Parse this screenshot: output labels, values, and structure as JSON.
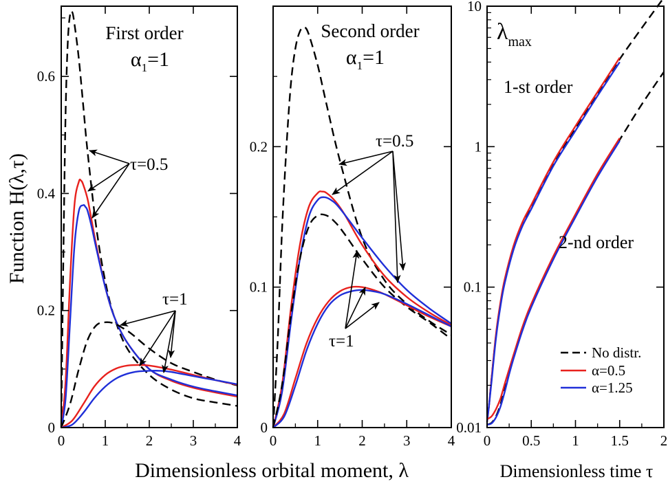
{
  "ylabel": "Function H(λ,τ)",
  "xlabel_left": "Dimensionless orbital moment, λ",
  "xlabel_right": "Dimensionless time τ",
  "chart_data": [
    {
      "type": "line",
      "title": "First order",
      "subtitle": "α₁=1",
      "xlabel": "Dimensionless orbital moment, λ",
      "ylabel": "Function H(λ,τ)",
      "xlim": [
        0,
        4
      ],
      "ylim": [
        0,
        0.72
      ],
      "xticks": [
        0,
        1,
        2,
        3,
        4
      ],
      "yticks": [
        0,
        0.2,
        0.4,
        0.6
      ],
      "annotations": [
        "τ=0.5",
        "τ=1"
      ],
      "series": [
        {
          "tau": 0.5,
          "style": "dashed",
          "color": "#000000",
          "x": [
            0,
            0.05,
            0.1,
            0.15,
            0.2,
            0.25,
            0.3,
            0.4,
            0.5,
            0.6,
            0.8,
            1.0,
            1.2,
            1.5,
            2.0,
            2.5,
            3.0,
            3.5,
            4.0
          ],
          "y": [
            0,
            0.3,
            0.54,
            0.66,
            0.705,
            0.71,
            0.69,
            0.63,
            0.55,
            0.47,
            0.34,
            0.25,
            0.19,
            0.135,
            0.09,
            0.065,
            0.05,
            0.043,
            0.037
          ]
        },
        {
          "tau": 0.5,
          "style": "solid",
          "color": "#e8211d",
          "x": [
            0,
            0.1,
            0.2,
            0.3,
            0.4,
            0.45,
            0.5,
            0.6,
            0.7,
            0.8,
            1.0,
            1.2,
            1.5,
            2.0,
            2.5,
            3.0,
            3.5,
            4.0
          ],
          "y": [
            0,
            0.08,
            0.25,
            0.38,
            0.42,
            0.422,
            0.415,
            0.39,
            0.35,
            0.31,
            0.24,
            0.19,
            0.145,
            0.1,
            0.08,
            0.068,
            0.06,
            0.053
          ]
        },
        {
          "tau": 0.5,
          "style": "solid",
          "color": "#1f2fd8",
          "x": [
            0,
            0.1,
            0.2,
            0.3,
            0.4,
            0.5,
            0.55,
            0.6,
            0.7,
            0.8,
            1.0,
            1.2,
            1.5,
            2.0,
            2.5,
            3.0,
            3.5,
            4.0
          ],
          "y": [
            0,
            0.05,
            0.18,
            0.31,
            0.37,
            0.38,
            0.377,
            0.37,
            0.34,
            0.305,
            0.24,
            0.19,
            0.145,
            0.1,
            0.082,
            0.07,
            0.062,
            0.055
          ]
        },
        {
          "tau": 1,
          "style": "dashed",
          "color": "#000000",
          "x": [
            0,
            0.2,
            0.4,
            0.6,
            0.8,
            1.0,
            1.2,
            1.4,
            1.6,
            2.0,
            2.5,
            3.0,
            3.5,
            4.0
          ],
          "y": [
            0,
            0.04,
            0.1,
            0.15,
            0.175,
            0.18,
            0.178,
            0.17,
            0.16,
            0.135,
            0.11,
            0.095,
            0.082,
            0.072
          ]
        },
        {
          "tau": 1,
          "style": "solid",
          "color": "#e8211d",
          "x": [
            0,
            0.25,
            0.5,
            0.75,
            1.0,
            1.25,
            1.5,
            1.75,
            2.0,
            2.5,
            3.0,
            3.5,
            4.0
          ],
          "y": [
            0,
            0.012,
            0.04,
            0.07,
            0.09,
            0.101,
            0.106,
            0.107,
            0.106,
            0.099,
            0.09,
            0.081,
            0.073
          ]
        },
        {
          "tau": 1,
          "style": "solid",
          "color": "#1f2fd8",
          "x": [
            0,
            0.25,
            0.5,
            0.75,
            1.0,
            1.25,
            1.5,
            1.75,
            2.0,
            2.25,
            2.5,
            3.0,
            3.5,
            4.0
          ],
          "y": [
            0,
            0.005,
            0.025,
            0.05,
            0.07,
            0.084,
            0.092,
            0.096,
            0.097,
            0.097,
            0.095,
            0.088,
            0.081,
            0.074
          ]
        }
      ]
    },
    {
      "type": "line",
      "title": "Second order",
      "subtitle": "α₁=1",
      "xlabel": "Dimensionless orbital moment, λ",
      "xlim": [
        0,
        4
      ],
      "ylim": [
        0,
        0.3
      ],
      "xticks": [
        0,
        1,
        2,
        3,
        4
      ],
      "yticks": [
        0,
        0.1,
        0.2
      ],
      "annotations": [
        "τ=0.5",
        "τ=1"
      ],
      "series": [
        {
          "tau": 0.5,
          "style": "dashed",
          "color": "#000000",
          "x": [
            0,
            0.1,
            0.2,
            0.3,
            0.4,
            0.5,
            0.6,
            0.7,
            0.8,
            1.0,
            1.2,
            1.5,
            2.0,
            2.5,
            3.0,
            3.5,
            4.0
          ],
          "y": [
            0,
            0.06,
            0.14,
            0.2,
            0.245,
            0.27,
            0.282,
            0.285,
            0.28,
            0.258,
            0.23,
            0.19,
            0.135,
            0.105,
            0.088,
            0.076,
            0.066
          ]
        },
        {
          "tau": 0.5,
          "style": "solid",
          "color": "#e8211d",
          "x": [
            0,
            0.2,
            0.4,
            0.6,
            0.8,
            1.0,
            1.1,
            1.2,
            1.4,
            1.6,
            2.0,
            2.5,
            3.0,
            3.5,
            4.0
          ],
          "y": [
            0,
            0.03,
            0.085,
            0.13,
            0.157,
            0.167,
            0.168,
            0.167,
            0.161,
            0.152,
            0.13,
            0.108,
            0.093,
            0.082,
            0.073
          ]
        },
        {
          "tau": 0.5,
          "style": "solid",
          "color": "#1f2fd8",
          "x": [
            0,
            0.2,
            0.4,
            0.6,
            0.8,
            1.0,
            1.15,
            1.3,
            1.5,
            2.0,
            2.5,
            3.0,
            3.5,
            4.0
          ],
          "y": [
            0,
            0.025,
            0.075,
            0.12,
            0.15,
            0.162,
            0.164,
            0.162,
            0.156,
            0.135,
            0.115,
            0.098,
            0.085,
            0.074
          ]
        },
        {
          "tau": 1,
          "style": "dashed",
          "color": "#000000",
          "x": [
            0,
            0.2,
            0.4,
            0.6,
            0.8,
            1.0,
            1.2,
            1.4,
            1.6,
            2.0,
            2.5,
            3.0,
            3.5,
            4.0
          ],
          "y": [
            0,
            0.03,
            0.08,
            0.12,
            0.143,
            0.151,
            0.151,
            0.146,
            0.138,
            0.12,
            0.1,
            0.086,
            0.075,
            0.063
          ]
        },
        {
          "tau": 1,
          "style": "solid",
          "color": "#e8211d",
          "x": [
            0,
            0.25,
            0.5,
            0.75,
            1.0,
            1.25,
            1.5,
            1.75,
            2.0,
            2.25,
            2.5,
            3.0,
            3.5,
            4.0
          ],
          "y": [
            0,
            0.01,
            0.035,
            0.06,
            0.078,
            0.09,
            0.097,
            0.1,
            0.1,
            0.098,
            0.095,
            0.087,
            0.079,
            0.072
          ]
        },
        {
          "tau": 1,
          "style": "solid",
          "color": "#1f2fd8",
          "x": [
            0,
            0.25,
            0.5,
            0.75,
            1.0,
            1.25,
            1.5,
            1.75,
            2.0,
            2.25,
            2.5,
            3.0,
            3.5,
            4.0
          ],
          "y": [
            0,
            0.008,
            0.03,
            0.055,
            0.074,
            0.087,
            0.094,
            0.097,
            0.098,
            0.097,
            0.095,
            0.088,
            0.08,
            0.072
          ]
        }
      ]
    },
    {
      "type": "line",
      "title": "λmax",
      "xlabel": "Dimensionless time τ",
      "xlim": [
        0,
        2
      ],
      "ylim": [
        0.01,
        10
      ],
      "yscale": "log",
      "xticks": [
        0,
        0.5,
        1,
        1.5,
        2
      ],
      "xtick_labels": [
        "0",
        "0.5",
        "1",
        "1.5",
        "2"
      ],
      "yticks": [
        0.01,
        0.1,
        1,
        10
      ],
      "ytick_labels": [
        "0.01",
        "0.1",
        "1",
        "10"
      ],
      "annotations": [
        "1-st order",
        "2-nd order"
      ],
      "legend": {
        "position": "bottom-right",
        "entries": [
          {
            "label": "No distr.",
            "style": "dashed",
            "color": "#000000"
          },
          {
            "label": "α=0.5",
            "style": "solid",
            "color": "#e8211d"
          },
          {
            "label": "α=1.25",
            "style": "solid",
            "color": "#1f2fd8"
          }
        ]
      },
      "series": [
        {
          "name": "No distr.",
          "order": 1,
          "style": "dashed",
          "color": "#000000",
          "x": [
            0,
            0.02,
            0.05,
            0.1,
            0.15,
            0.2,
            0.3,
            0.4,
            0.5,
            0.75,
            1.0,
            1.25,
            1.5,
            1.75,
            2.0
          ],
          "y": [
            0.011,
            0.014,
            0.022,
            0.045,
            0.075,
            0.11,
            0.19,
            0.28,
            0.37,
            0.75,
            1.35,
            2.4,
            4.2,
            7.0,
            11.5
          ]
        },
        {
          "name": "α=0.5",
          "order": 1,
          "style": "solid",
          "color": "#e8211d",
          "x": [
            0,
            0.02,
            0.05,
            0.1,
            0.15,
            0.2,
            0.3,
            0.4,
            0.5,
            0.75,
            1.0,
            1.25,
            1.5
          ],
          "y": [
            0.011,
            0.014,
            0.022,
            0.046,
            0.077,
            0.114,
            0.197,
            0.29,
            0.385,
            0.78,
            1.4,
            2.45,
            4.3
          ]
        },
        {
          "name": "α=1.25",
          "order": 1,
          "style": "solid",
          "color": "#1f2fd8",
          "x": [
            0,
            0.02,
            0.05,
            0.1,
            0.15,
            0.2,
            0.3,
            0.4,
            0.5,
            0.75,
            1.0,
            1.25,
            1.5
          ],
          "y": [
            0.011,
            0.014,
            0.021,
            0.043,
            0.072,
            0.107,
            0.185,
            0.272,
            0.36,
            0.73,
            1.3,
            2.3,
            4.0
          ]
        },
        {
          "name": "No distr.",
          "order": 2,
          "style": "dashed",
          "color": "#000000",
          "x": [
            0,
            0.05,
            0.1,
            0.15,
            0.2,
            0.25,
            0.3,
            0.4,
            0.5,
            0.75,
            1.0,
            1.25,
            1.5,
            1.75,
            2.0
          ],
          "y": [
            0.0105,
            0.0108,
            0.012,
            0.0145,
            0.019,
            0.025,
            0.032,
            0.05,
            0.073,
            0.16,
            0.32,
            0.62,
            1.12,
            2.0,
            3.4
          ]
        },
        {
          "name": "α=0.5",
          "order": 2,
          "style": "solid",
          "color": "#e8211d",
          "x": [
            0,
            0.05,
            0.1,
            0.15,
            0.2,
            0.25,
            0.3,
            0.4,
            0.5,
            0.75,
            1.0,
            1.25,
            1.5
          ],
          "y": [
            0.0115,
            0.012,
            0.0135,
            0.016,
            0.0205,
            0.026,
            0.033,
            0.052,
            0.076,
            0.166,
            0.33,
            0.64,
            1.15
          ]
        },
        {
          "name": "α=1.25",
          "order": 2,
          "style": "solid",
          "color": "#1f2fd8",
          "x": [
            0,
            0.05,
            0.1,
            0.15,
            0.2,
            0.25,
            0.3,
            0.4,
            0.5,
            0.75,
            1.0,
            1.25,
            1.5
          ],
          "y": [
            0.0105,
            0.0107,
            0.0118,
            0.014,
            0.018,
            0.024,
            0.031,
            0.049,
            0.072,
            0.158,
            0.315,
            0.61,
            1.1
          ]
        }
      ]
    }
  ]
}
